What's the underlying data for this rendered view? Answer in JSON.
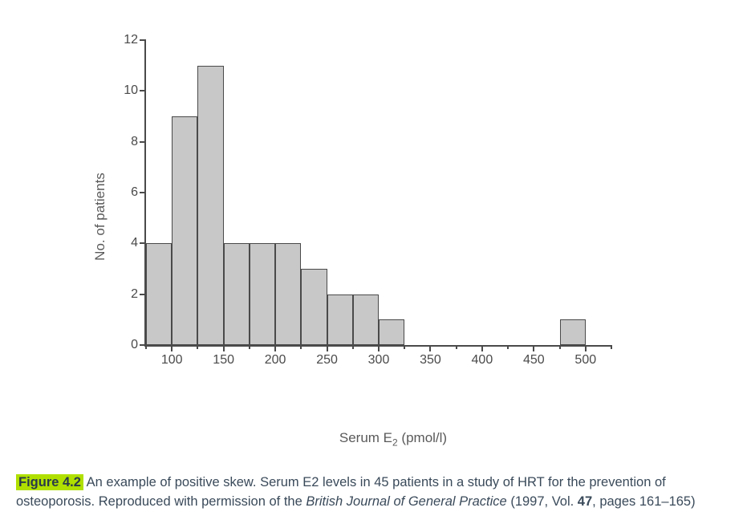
{
  "chart": {
    "type": "histogram",
    "ylabel": "No. of patients",
    "xlabel_html": "Serum E<sub>2</sub> (pmol/l)",
    "xlim": [
      75,
      525
    ],
    "ylim": [
      0,
      12
    ],
    "ytick_step": 2,
    "yticks": [
      0,
      2,
      4,
      6,
      8,
      10,
      12
    ],
    "xticks_major": [
      100,
      150,
      200,
      250,
      300,
      350,
      400,
      450,
      500
    ],
    "bin_width": 25,
    "bins": [
      {
        "start": 75,
        "end": 100,
        "count": 4
      },
      {
        "start": 100,
        "end": 125,
        "count": 9
      },
      {
        "start": 125,
        "end": 150,
        "count": 11
      },
      {
        "start": 150,
        "end": 175,
        "count": 4
      },
      {
        "start": 175,
        "end": 200,
        "count": 4
      },
      {
        "start": 200,
        "end": 225,
        "count": 4
      },
      {
        "start": 225,
        "end": 250,
        "count": 3
      },
      {
        "start": 250,
        "end": 275,
        "count": 2
      },
      {
        "start": 275,
        "end": 300,
        "count": 2
      },
      {
        "start": 300,
        "end": 325,
        "count": 1
      },
      {
        "start": 475,
        "end": 500,
        "count": 1
      }
    ],
    "bar_fill": "#c8c8c8",
    "bar_stroke": "#4a4a4a",
    "axis_color": "#4a4a4a",
    "background_color": "#ffffff",
    "label_fontsize": 17,
    "tick_fontsize": 16
  },
  "caption": {
    "figure_label": "Figure 4.2",
    "text_before_italic": "An example of positive skew. Serum E2 levels in 45 patients in a study of HRT for the prevention of osteoporosis. Reproduced with permission of the ",
    "italic_source": "British Journal of General Practice",
    "text_after_italic_before_vol": " (1997, Vol. ",
    "volume": "47",
    "text_after_vol": ", pages 161–165)"
  }
}
